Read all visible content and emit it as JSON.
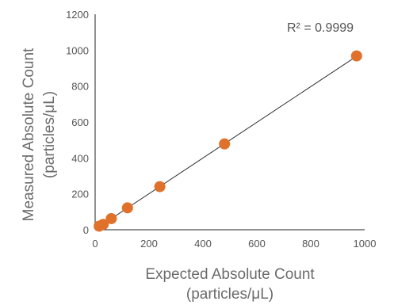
{
  "chart_data": {
    "type": "scatter",
    "title": "",
    "xlabel_lines": [
      "Expected Absolute Count",
      "(particles/μL)"
    ],
    "ylabel_lines": [
      "Measured Absolute Count",
      "(particles/μL)"
    ],
    "xlim": [
      0,
      1000
    ],
    "ylim": [
      0,
      1200
    ],
    "x_ticks": [
      "0",
      "200",
      "400",
      "600",
      "800",
      "1000"
    ],
    "y_ticks": [
      "0",
      "200",
      "400",
      "600",
      "800",
      "1000",
      "1200"
    ],
    "series": [
      {
        "x": [
          15,
          30,
          60,
          120,
          240,
          480,
          970
        ],
        "y": [
          20,
          30,
          62,
          122,
          240,
          478,
          968
        ],
        "color": "#e0712b"
      }
    ],
    "trendline": {
      "type": "linear",
      "x": [
        0,
        980
      ],
      "y": [
        2,
        976
      ],
      "color": "#333333"
    },
    "annotation": {
      "r2_label": "R² = 0.9999"
    },
    "grid": false,
    "legend": "none"
  }
}
